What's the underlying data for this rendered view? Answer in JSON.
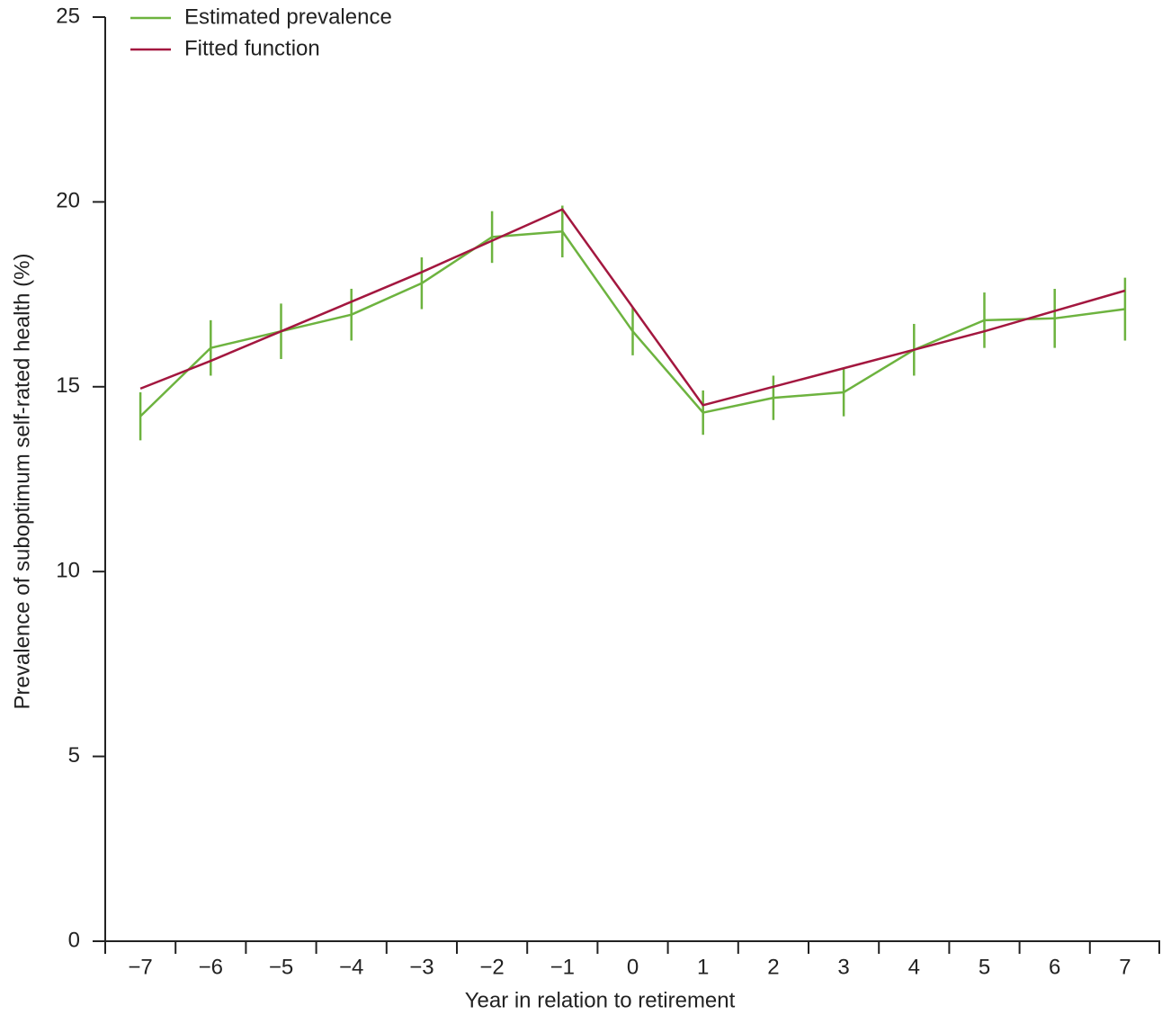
{
  "chart_data": {
    "type": "line",
    "x_label": "Year in relation to retirement",
    "y_label": "Prevalence of suboptimum self-rated health (%)",
    "categories": [
      "−7",
      "−6",
      "−5",
      "−4",
      "−3",
      "−2",
      "−1",
      "0",
      "1",
      "2",
      "3",
      "4",
      "5",
      "6",
      "7"
    ],
    "series": [
      {
        "name": "Estimated prevalence",
        "color": "#6db33f",
        "values": [
          14.2,
          16.05,
          16.5,
          16.95,
          17.8,
          19.05,
          19.2,
          16.5,
          14.3,
          14.7,
          14.85,
          16.0,
          16.8,
          16.85,
          17.1
        ],
        "errors": [
          0.65,
          0.75,
          0.75,
          0.7,
          0.7,
          0.7,
          0.7,
          0.65,
          0.6,
          0.6,
          0.65,
          0.7,
          0.75,
          0.8,
          0.85
        ]
      },
      {
        "name": "Fitted function",
        "color": "#a3173f",
        "values": [
          14.95,
          15.7,
          16.5,
          17.3,
          18.1,
          18.95,
          19.8,
          17.15,
          14.5,
          15.0,
          15.5,
          16.0,
          16.5,
          17.05,
          17.6
        ]
      }
    ],
    "ylim": [
      0,
      25
    ],
    "yticks": [
      0,
      5,
      10,
      15,
      20,
      25
    ],
    "grid": false,
    "legend": "top-left"
  }
}
